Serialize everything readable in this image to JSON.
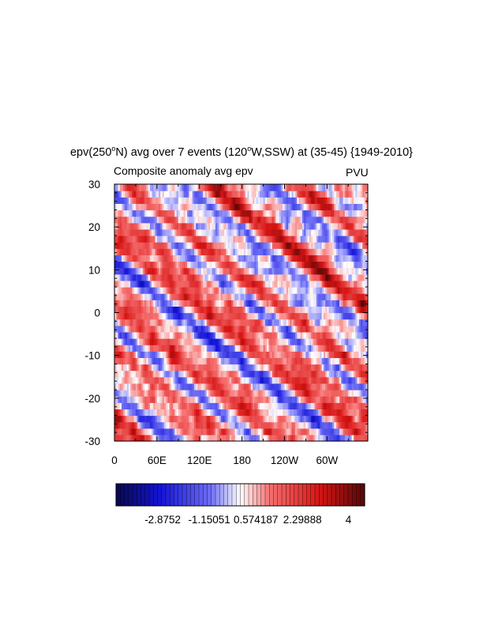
{
  "chart_data": {
    "type": "heatmap",
    "title_prefix": "epv(250",
    "title_deg": "o",
    "title_mid": "N) avg over 7 events (120",
    "title_deg2": "o",
    "title_suffix": "W,SSW) at (35-45) {1949-2010}",
    "left_subtitle": "Composite anomaly avg epv",
    "right_subtitle": "PVU",
    "x_ticks": [
      {
        "lon": 0,
        "label": "0"
      },
      {
        "lon": 60,
        "label": "60E"
      },
      {
        "lon": 120,
        "label": "120E"
      },
      {
        "lon": 180,
        "label": "180"
      },
      {
        "lon": 240,
        "label": "120W"
      },
      {
        "lon": 300,
        "label": "60W"
      }
    ],
    "xlim": [
      0,
      357.5
    ],
    "y_ticks": [
      {
        "lat": 30,
        "label": "30"
      },
      {
        "lat": 20,
        "label": "20"
      },
      {
        "lat": 10,
        "label": "10"
      },
      {
        "lat": 0,
        "label": "0"
      },
      {
        "lat": -10,
        "label": "-10"
      },
      {
        "lat": -20,
        "label": "-20"
      },
      {
        "lat": -30,
        "label": "-30"
      }
    ],
    "ylim": [
      -30,
      30
    ],
    "colorbar": {
      "min": -4.6,
      "max": 4.6,
      "labels": [
        {
          "value": -2.8752,
          "label": "-2.8752"
        },
        {
          "value": -1.15051,
          "label": "-1.15051"
        },
        {
          "value": 0.574187,
          "label": "0.574187"
        },
        {
          "value": 2.29888,
          "label": "2.29888"
        },
        {
          "value": 4.0,
          "label": "4"
        }
      ]
    }
  }
}
